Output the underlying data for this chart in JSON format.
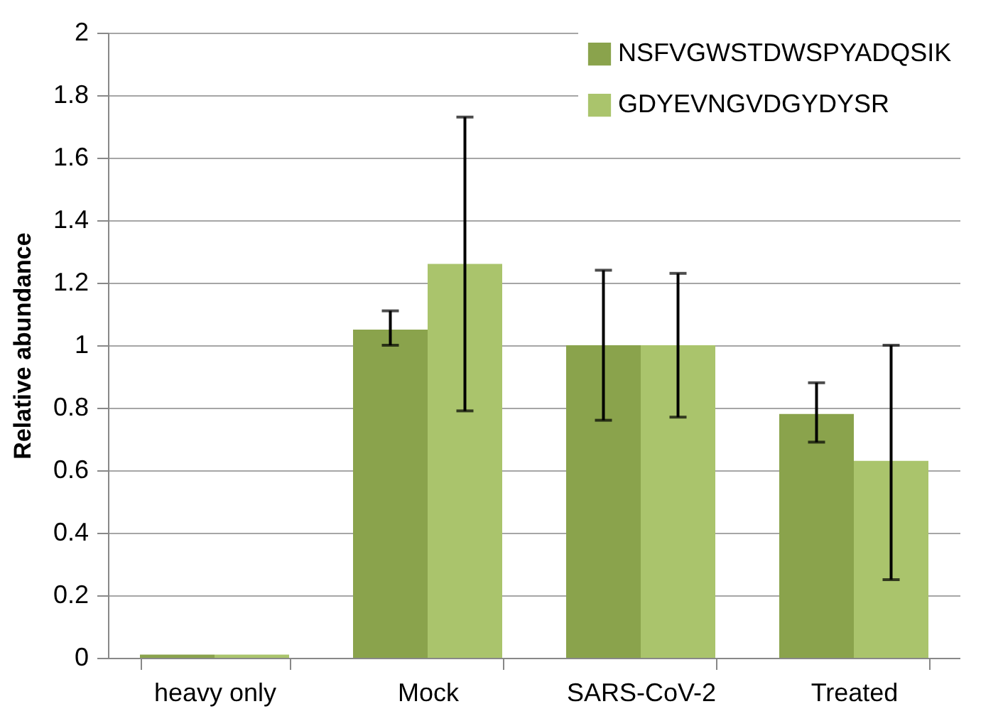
{
  "chart_data": {
    "type": "bar",
    "ylabel": "Relative abundance",
    "categories": [
      "heavy only",
      "Mock",
      "SARS-CoV-2",
      "Treated"
    ],
    "series": [
      {
        "name": "NSFVGWSTDWSPYADQSIK",
        "color": "#8aa34c",
        "values": [
          0.01,
          1.05,
          1.0,
          0.78
        ],
        "errors": [
          null,
          [
            1.0,
            1.11
          ],
          [
            0.76,
            1.24
          ],
          [
            0.69,
            0.88
          ]
        ]
      },
      {
        "name": "GDYEVNGVDGYDYSR",
        "color": "#aac46c",
        "values": [
          0.01,
          1.26,
          1.0,
          0.63
        ],
        "errors": [
          null,
          [
            0.79,
            1.73
          ],
          [
            0.77,
            1.23
          ],
          [
            0.25,
            1.0
          ]
        ]
      }
    ],
    "ylim": [
      0,
      2
    ],
    "yticks": [
      0,
      0.2,
      0.4,
      0.6,
      0.8,
      1,
      1.2,
      1.4,
      1.6,
      1.8,
      2
    ],
    "grid": "y",
    "legend": "top right"
  }
}
